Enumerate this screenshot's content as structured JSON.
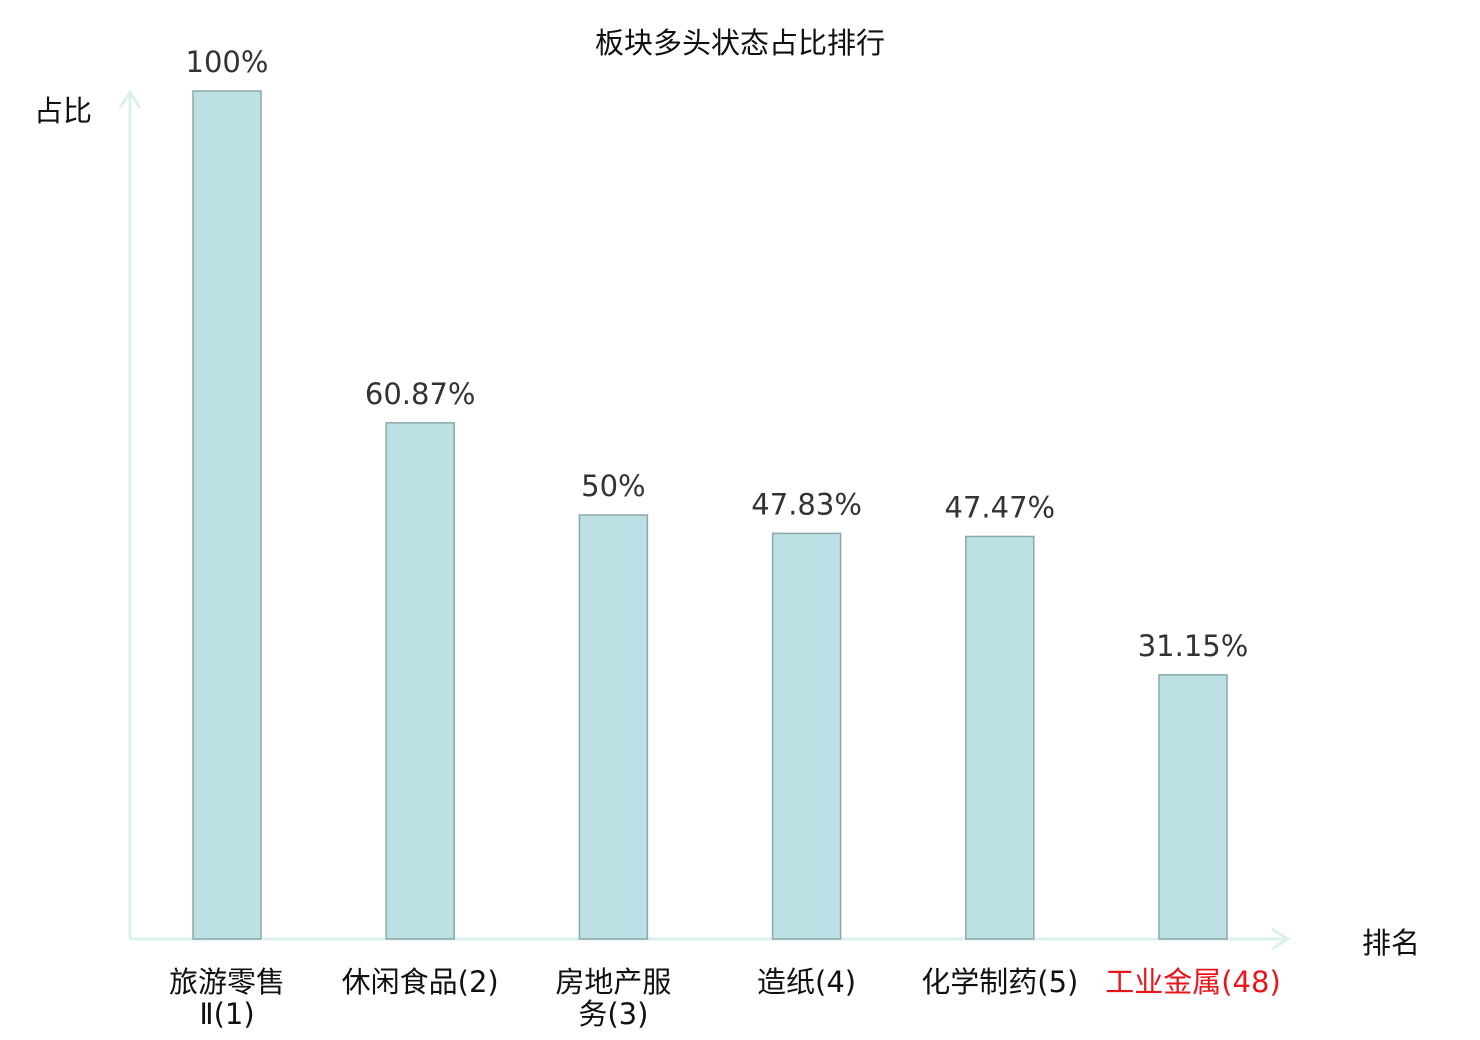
{
  "chart_data": {
    "type": "bar",
    "title": "板块多头状态占比排行",
    "ylabel": "占比",
    "xlabel": "排名",
    "categories": [
      "旅游零售Ⅱ(1)",
      "休闲食品(2)",
      "房地产服务(3)",
      "造纸(4)",
      "化学制药(5)",
      "工业金属(48)"
    ],
    "category_lines": [
      [
        "旅游零售",
        "Ⅱ(1)"
      ],
      [
        "休闲食品(2)"
      ],
      [
        "房地产服",
        "务(3)"
      ],
      [
        "造纸(4)"
      ],
      [
        "化学制药(5)"
      ],
      [
        "工业金属(48)"
      ]
    ],
    "values": [
      100,
      60.87,
      50,
      47.83,
      47.47,
      31.15
    ],
    "data_labels": [
      "100%",
      "60.87%",
      "50%",
      "47.83%",
      "47.47%",
      "31.15%"
    ],
    "ylim": [
      0,
      100
    ],
    "grid": false,
    "highlighted_category_index": 5,
    "colors": {
      "bar_fill": "#bce0e3",
      "bar_stroke": "#8ba9ab",
      "axis": "#dcf1ef",
      "highlight_label": "#e8161b",
      "text": "#333333"
    }
  }
}
